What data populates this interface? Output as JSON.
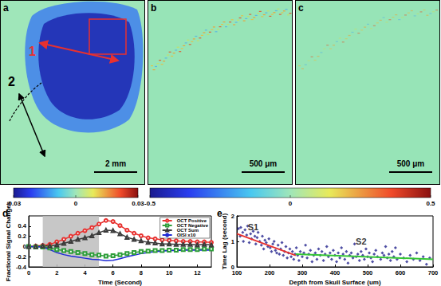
{
  "image_panels": [
    {
      "label": "a",
      "annotations": [
        "1",
        "2"
      ],
      "scale_bar": "2 mm"
    },
    {
      "label": "b",
      "scale_bar": "500 μm"
    },
    {
      "label": "c",
      "scale_bar": "500 μm"
    }
  ],
  "colorbars": [
    {
      "range": [
        -0.03,
        0.03
      ],
      "ticks": [
        -0.03,
        0,
        0.03
      ]
    },
    {
      "range": [
        -0.5,
        0.5
      ],
      "ticks": [
        -0.5,
        0,
        0.5
      ]
    }
  ],
  "chart_data": [
    {
      "label": "d",
      "type": "line",
      "xlabel": "Time (Second)",
      "ylabel": "Fractional Signal Changes",
      "xlim": [
        0,
        13
      ],
      "xticks": [
        0,
        2,
        4,
        6,
        8,
        10,
        12
      ],
      "ylim": [
        -0.4,
        0.6
      ],
      "yticks": [
        -0.4,
        -0.2,
        0,
        0.2,
        0.4
      ],
      "grid": false,
      "legend": "upper right",
      "shaded_x": [
        1,
        5
      ],
      "x": [
        0,
        0.5,
        1,
        1.5,
        2,
        2.5,
        3,
        3.5,
        4,
        4.5,
        5,
        5.5,
        6,
        6.5,
        7,
        7.5,
        8,
        8.5,
        9,
        9.5,
        10,
        10.5,
        11,
        11.5,
        12,
        12.5,
        13
      ],
      "series": [
        {
          "name": "OCT Positive",
          "color": "#e8312f",
          "marker": "open_circle",
          "values": [
            0,
            0.01,
            0.02,
            0.04,
            0.09,
            0.14,
            0.2,
            0.26,
            0.31,
            0.37,
            0.44,
            0.51,
            0.49,
            0.41,
            0.32,
            0.26,
            0.21,
            0.17,
            0.15,
            0.13,
            0.12,
            0.11,
            0.1,
            0.1,
            0.09,
            0.09,
            0.08
          ]
        },
        {
          "name": "OCT Negative",
          "color": "#2e9e3a",
          "marker": "open_square",
          "values": [
            0,
            -0.01,
            -0.01,
            -0.03,
            -0.06,
            -0.08,
            -0.1,
            -0.12,
            -0.14,
            -0.16,
            -0.17,
            -0.19,
            -0.18,
            -0.16,
            -0.14,
            -0.12,
            -0.1,
            -0.09,
            -0.08,
            -0.08,
            -0.07,
            -0.07,
            -0.06,
            -0.06,
            -0.06,
            -0.05,
            -0.05
          ]
        },
        {
          "name": "OCT Sum",
          "color": "#3a3a3a",
          "marker": "open_triangle",
          "values": [
            0,
            0,
            0.01,
            0.01,
            0.03,
            0.06,
            0.1,
            0.14,
            0.17,
            0.21,
            0.27,
            0.32,
            0.31,
            0.25,
            0.18,
            0.14,
            0.11,
            0.08,
            0.07,
            0.05,
            0.05,
            0.04,
            0.04,
            0.04,
            0.03,
            0.04,
            0.03
          ]
        },
        {
          "name": "OISI x10",
          "color": "#1f2bd6",
          "marker": "none",
          "values": [
            0,
            0,
            -0.01,
            -0.06,
            -0.12,
            -0.16,
            -0.19,
            -0.21,
            -0.23,
            -0.25,
            -0.26,
            -0.28,
            -0.27,
            -0.24,
            -0.2,
            -0.17,
            -0.14,
            -0.12,
            -0.1,
            -0.09,
            -0.08,
            -0.08,
            -0.07,
            -0.07,
            -0.07,
            -0.07,
            -0.07
          ]
        }
      ]
    },
    {
      "label": "e",
      "type": "scatter",
      "xlabel": "Depth from Skull Surface (um)",
      "ylabel": "Time Lag (second)",
      "xlim": [
        100,
        700
      ],
      "xticks": [
        100,
        200,
        300,
        400,
        500,
        600,
        700
      ],
      "ylim": [
        0,
        2
      ],
      "yticks": [
        0,
        1,
        2
      ],
      "grid": false,
      "series": [
        {
          "type": "scatter",
          "color": "#22228c",
          "marker": "diamond",
          "x": [
            105,
            110,
            112,
            118,
            120,
            125,
            130,
            133,
            138,
            142,
            145,
            150,
            155,
            158,
            162,
            165,
            170,
            175,
            178,
            182,
            186,
            190,
            195,
            198,
            202,
            206,
            210,
            214,
            218,
            222,
            226,
            230,
            234,
            238,
            242,
            246,
            250,
            254,
            258,
            262,
            266,
            270,
            274,
            278,
            282,
            286,
            290,
            294,
            300,
            305,
            310,
            315,
            320,
            325,
            330,
            335,
            340,
            345,
            350,
            355,
            360,
            365,
            370,
            375,
            380,
            385,
            390,
            395,
            400,
            405,
            410,
            415,
            420,
            425,
            430,
            435,
            440,
            445,
            450,
            455,
            460,
            465,
            470,
            475,
            480,
            485,
            490,
            495,
            500,
            505,
            510,
            515,
            520,
            525,
            530,
            540,
            545,
            550,
            555,
            560,
            565,
            570,
            575,
            580,
            585,
            590,
            600,
            610,
            620,
            630,
            640,
            650,
            660,
            670,
            680,
            690
          ],
          "values": [
            1.5,
            1.2,
            1.55,
            1.35,
            1.0,
            1.45,
            1.25,
            1.6,
            0.95,
            1.3,
            1.1,
            1.4,
            1.2,
            0.9,
            1.15,
            1.35,
            1.0,
            0.85,
            1.2,
            0.7,
            1.05,
            0.95,
            0.8,
            1.1,
            0.75,
            0.6,
            0.9,
            1.0,
            0.65,
            0.55,
            0.85,
            0.5,
            0.7,
            0.95,
            0.45,
            0.6,
            0.8,
            0.35,
            0.55,
            0.7,
            0.4,
            0.6,
            0.3,
            0.5,
            0.75,
            0.45,
            0.25,
            0.6,
            0.4,
            0.55,
            0.85,
            0.35,
            0.5,
            0.65,
            0.2,
            0.45,
            0.55,
            0.3,
            0.7,
            0.45,
            0.6,
            0.25,
            0.5,
            0.8,
            0.4,
            0.55,
            0.3,
            0.65,
            0.45,
            0.2,
            0.55,
            0.35,
            0.75,
            0.5,
            0.3,
            0.6,
            0.15,
            0.45,
            0.55,
            0.35,
            0.9,
            0.4,
            0.5,
            0.25,
            0.6,
            0.45,
            0.3,
            0.7,
            0.4,
            0.55,
            0.35,
            0.2,
            0.5,
            0.65,
            0.4,
            0.3,
            0.55,
            0.45,
            0.8,
            0.35,
            0.5,
            0.25,
            0.6,
            0.4,
            0.75,
            0.3,
            0.5,
            0.35,
            0.2,
            0.45,
            0.3,
            0.55,
            0.25,
            0.4,
            0.1,
            0.35
          ]
        },
        {
          "type": "line",
          "color": "#e8312f",
          "marker": "none",
          "x": [
            100,
            280
          ],
          "values": [
            1.3,
            0.45
          ]
        },
        {
          "type": "line",
          "color": "#35c635",
          "marker": "none",
          "x": [
            280,
            700
          ],
          "values": [
            0.5,
            0.3
          ]
        }
      ],
      "annotations": [
        {
          "text": "S1",
          "x": 150,
          "y": 1.55
        },
        {
          "text": "S2",
          "x": 480,
          "y": 1.0
        }
      ]
    }
  ]
}
